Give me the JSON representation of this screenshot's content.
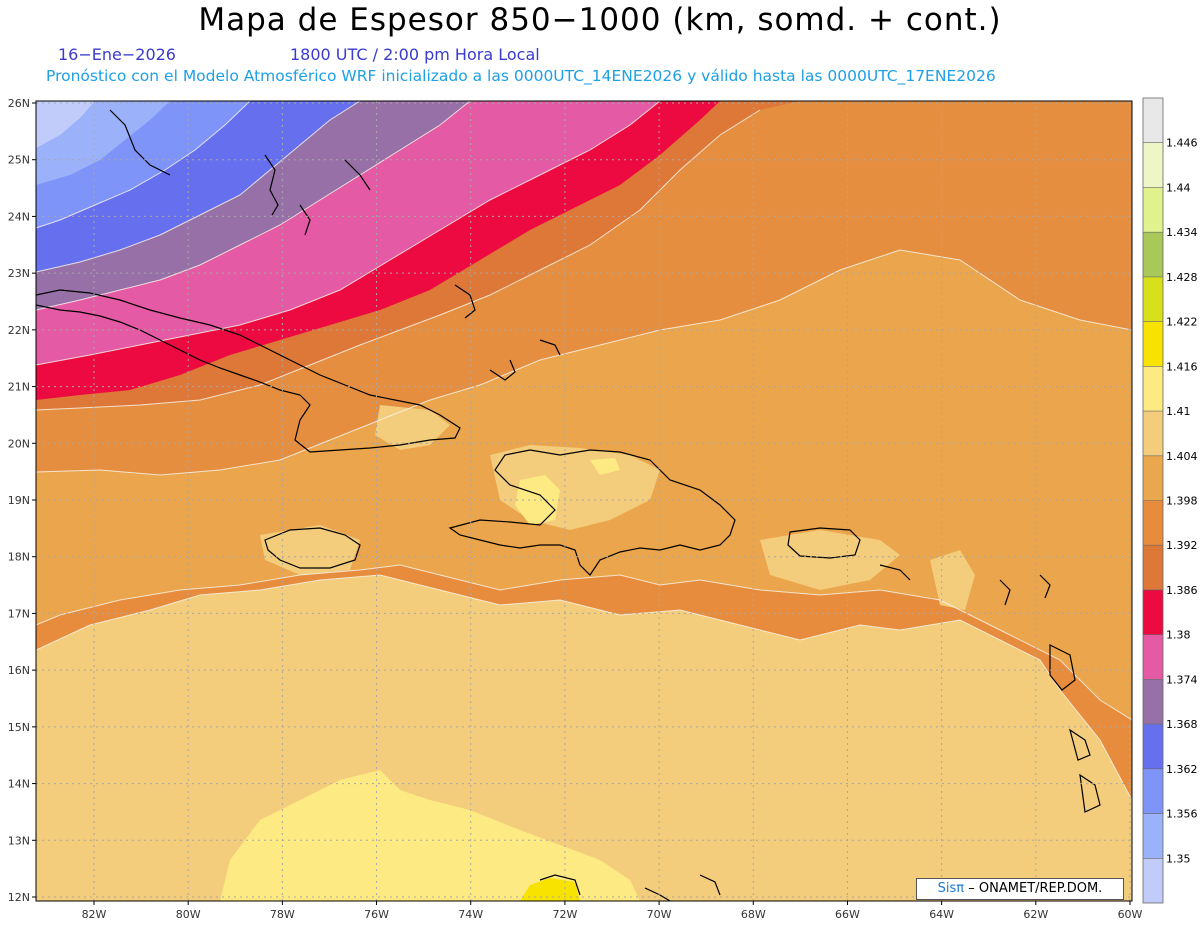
{
  "header": {
    "title": "Mapa de Espesor 850−1000 (km, somd. + cont.)",
    "date": "16−Ene−2026",
    "time": "1800 UTC / 2:00 pm Hora Local",
    "model": "Pronóstico con el Modelo Atmosférico WRF inicializado a las 0000UTC_14ENE2026 y válido hasta las  0000UTC_17ENE2026"
  },
  "axes": {
    "lat_labels": [
      "26N",
      "25N",
      "24N",
      "23N",
      "22N",
      "21N",
      "20N",
      "19N",
      "18N",
      "17N",
      "16N",
      "15N",
      "14N",
      "13N",
      "12N"
    ],
    "lon_labels": [
      "82W",
      "80W",
      "78W",
      "76W",
      "74W",
      "72W",
      "70W",
      "68W",
      "66W",
      "64W",
      "62W",
      "60W"
    ]
  },
  "colorbar": {
    "levels": [
      "1.35",
      "1.356",
      "1.362",
      "1.368",
      "1.374",
      "1.38",
      "1.386",
      "1.392",
      "1.398",
      "1.404",
      "1.41",
      "1.416",
      "1.422",
      "1.428",
      "1.434",
      "1.44",
      "1.446"
    ],
    "colors": [
      "#c2ccfa",
      "#9bb2fa",
      "#7e94f8",
      "#6670ee",
      "#9870a8",
      "#e55aa4",
      "#ec0a40",
      "#dd7838",
      "#e68c3c",
      "#eba74e",
      "#f3cd7c",
      "#fdea82",
      "#f8e200",
      "#d8e01c",
      "#a8c85a",
      "#dff28e",
      "#eef6c8",
      "#e8e8e8"
    ]
  },
  "credit": {
    "brand": "Sisπ",
    "text": "– ONAMET/REP.DOM."
  }
}
